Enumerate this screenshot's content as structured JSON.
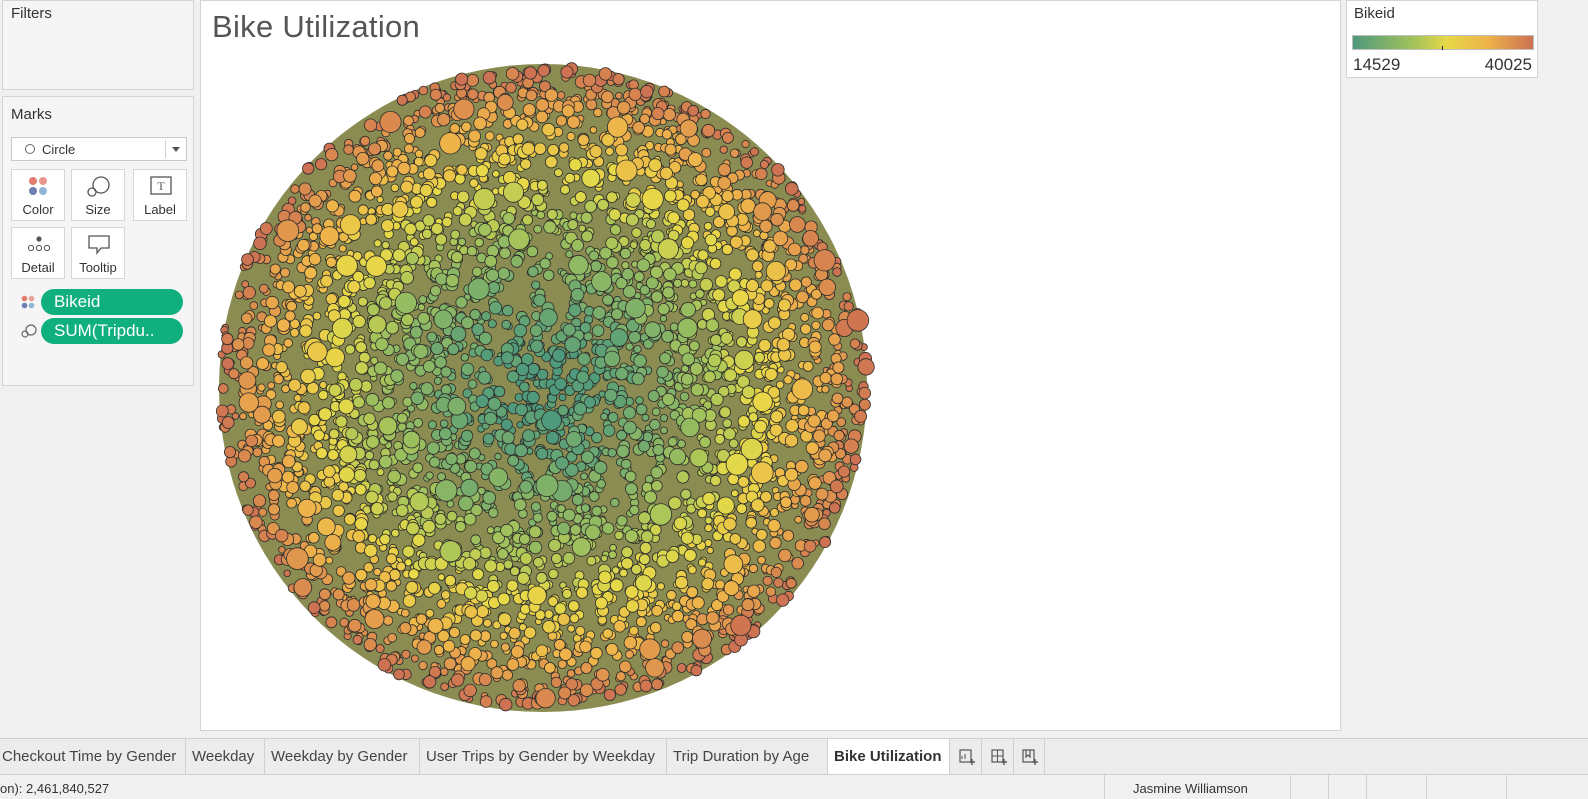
{
  "filters": {
    "title": "Filters"
  },
  "marks": {
    "title": "Marks",
    "mark_type": "Circle",
    "buttons": {
      "color": "Color",
      "size": "Size",
      "label": "Label",
      "detail": "Detail",
      "tooltip": "Tooltip"
    },
    "pills": [
      {
        "label": "Bikeid",
        "icon": "color-dots-icon"
      },
      {
        "label": "SUM(Tripdu..",
        "icon": "size-icon"
      }
    ],
    "pill_color": "#0fb07d"
  },
  "sheet": {
    "title": "Bike Utilization"
  },
  "legend": {
    "title": "Bikeid",
    "min": "14529",
    "max": "40025",
    "colors": [
      "#4f9a7c",
      "#a7c45a",
      "#e7d948",
      "#eeb24a",
      "#cd7252"
    ]
  },
  "tabs": [
    {
      "label": "Checkout Time by Gender",
      "active": false
    },
    {
      "label": "Weekday",
      "active": false
    },
    {
      "label": "Weekday by Gender",
      "active": false
    },
    {
      "label": "User Trips by Gender by Weekday",
      "active": false
    },
    {
      "label": "Trip Duration by Age",
      "active": false
    },
    {
      "label": "Bike Utilization",
      "active": true
    }
  ],
  "tab_actions": [
    "new-worksheet-icon",
    "new-dashboard-icon",
    "new-story-icon"
  ],
  "status": {
    "text": "on): 2,461,840,527",
    "user": "Jasmine Williamson"
  }
}
